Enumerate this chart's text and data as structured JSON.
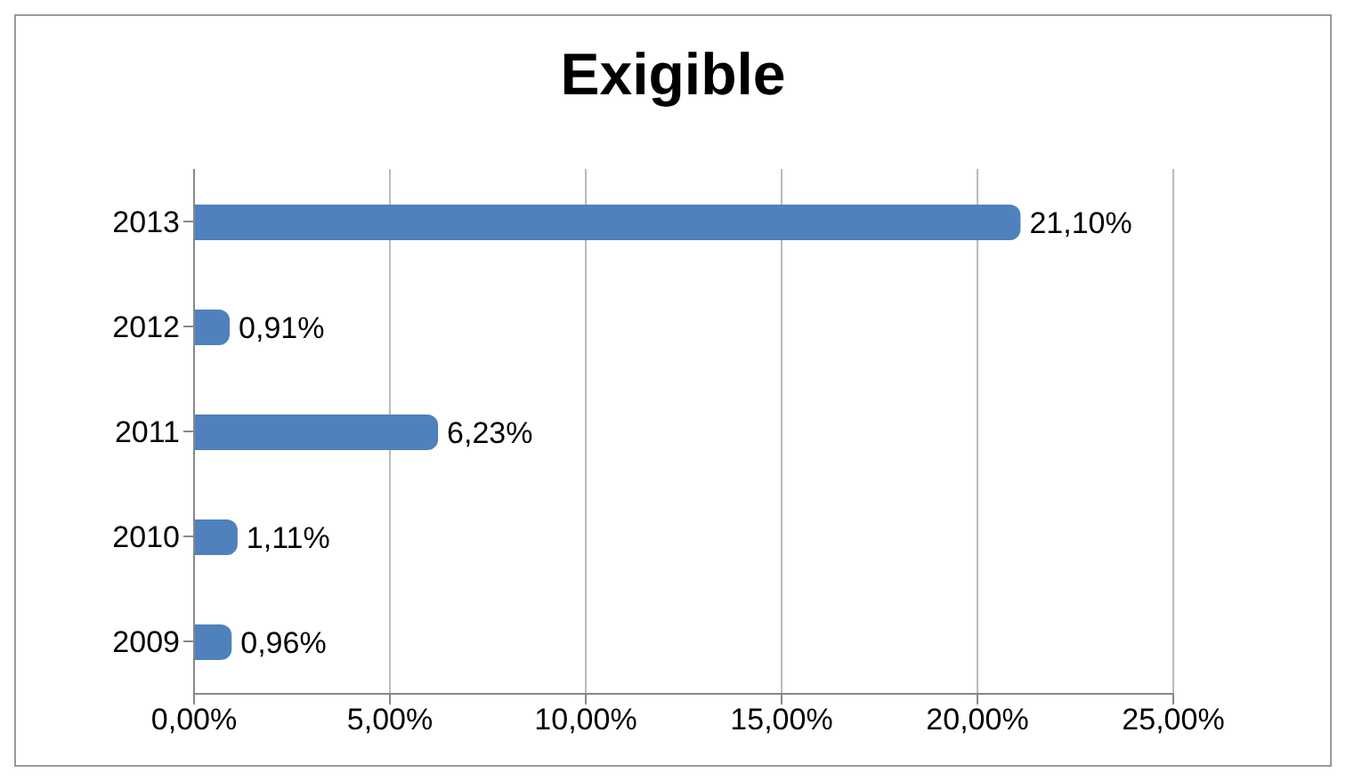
{
  "chart_data": {
    "type": "bar",
    "title": "Exigible",
    "orientation": "horizontal",
    "categories": [
      "2013",
      "2012",
      "2011",
      "2010",
      "2009"
    ],
    "values": [
      21.1,
      0.91,
      6.23,
      1.11,
      0.96
    ],
    "value_labels": [
      "21,10%",
      "0,91%",
      "6,23%",
      "1,11%",
      "0,96%"
    ],
    "color": "#4f81bd",
    "xlim": [
      0,
      25
    ],
    "xticks": [
      {
        "value": 0,
        "label": "0,00%"
      },
      {
        "value": 5,
        "label": "5,00%"
      },
      {
        "value": 10,
        "label": "10,00%"
      },
      {
        "value": 15,
        "label": "15,00%"
      },
      {
        "value": 20,
        "label": "20,00%"
      },
      {
        "value": 25,
        "label": "25,00%"
      }
    ],
    "grid": "x"
  }
}
